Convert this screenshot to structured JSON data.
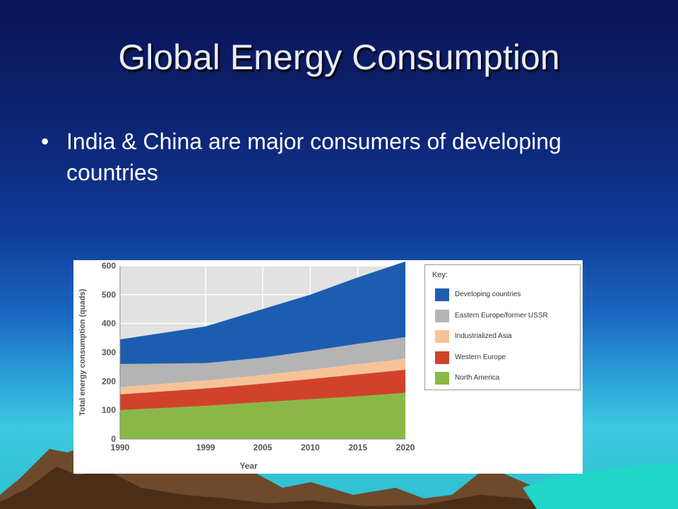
{
  "slide": {
    "title": "Global Energy Consumption",
    "bullets": [
      "India & China are major consumers of developing countries"
    ]
  },
  "colors": {
    "developing": "#1c5db0",
    "eastern_europe": "#b4b4b4",
    "industrialized_asia": "#f6c398",
    "western_europe": "#d0432a",
    "north_america": "#8ab848",
    "plot_background": "#e2e2e2",
    "grid": "#ffffff"
  },
  "chart_data": {
    "type": "area",
    "stacked": true,
    "x": [
      1990,
      1999,
      2005,
      2010,
      2015,
      2020
    ],
    "xlabel": "Year",
    "ylabel": "Total energy consumption (quads)",
    "ylim": [
      0,
      600
    ],
    "yticks": [
      0,
      100,
      200,
      300,
      400,
      500,
      600
    ],
    "grid": true,
    "legend_title": "Key:",
    "legend_position": "right",
    "series": [
      {
        "name": "North America",
        "color_key": "north_america",
        "values": [
          100,
          115,
          128,
          138,
          148,
          160
        ]
      },
      {
        "name": "Western Europe",
        "color_key": "western_europe",
        "values": [
          55,
          60,
          64,
          70,
          76,
          80
        ]
      },
      {
        "name": "Industrialized Asia",
        "color_key": "industrialized_asia",
        "values": [
          25,
          28,
          30,
          32,
          36,
          38
        ]
      },
      {
        "name": "Eastern Europe/former USSR",
        "color_key": "eastern_europe",
        "values": [
          80,
          60,
          60,
          65,
          70,
          75
        ]
      },
      {
        "name": "Developing countries",
        "color_key": "developing",
        "values": [
          85,
          127,
          168,
          195,
          230,
          262
        ]
      }
    ],
    "legend_order": [
      "Developing countries",
      "Eastern Europe/former USSR",
      "Industrialized Asia",
      "Western Europe",
      "North America"
    ]
  }
}
